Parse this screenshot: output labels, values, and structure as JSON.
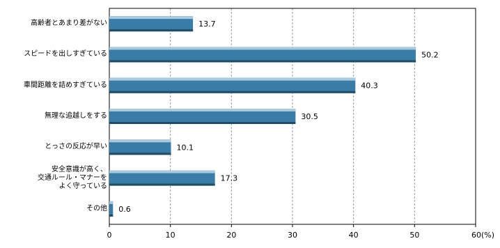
{
  "chart_data": {
    "type": "hbar",
    "categories": [
      "高齢者とあまり差がない",
      "スピードを出しすぎている",
      "車間距離を詰めすぎている",
      "無理な追越しをする",
      "とっさの反応が早い",
      "安全意識が高く、\n交通ルール・マナーを\nよく守っている",
      "その他"
    ],
    "values": [
      13.7,
      50.2,
      40.3,
      30.5,
      10.1,
      17.3,
      0.6
    ],
    "color": "#3a7ca8",
    "xlim": [
      0,
      60
    ],
    "xticks": [
      0,
      10,
      20,
      30,
      40,
      50,
      {
        "value": 60,
        "label": "60(%)"
      }
    ],
    "grid": true
  }
}
